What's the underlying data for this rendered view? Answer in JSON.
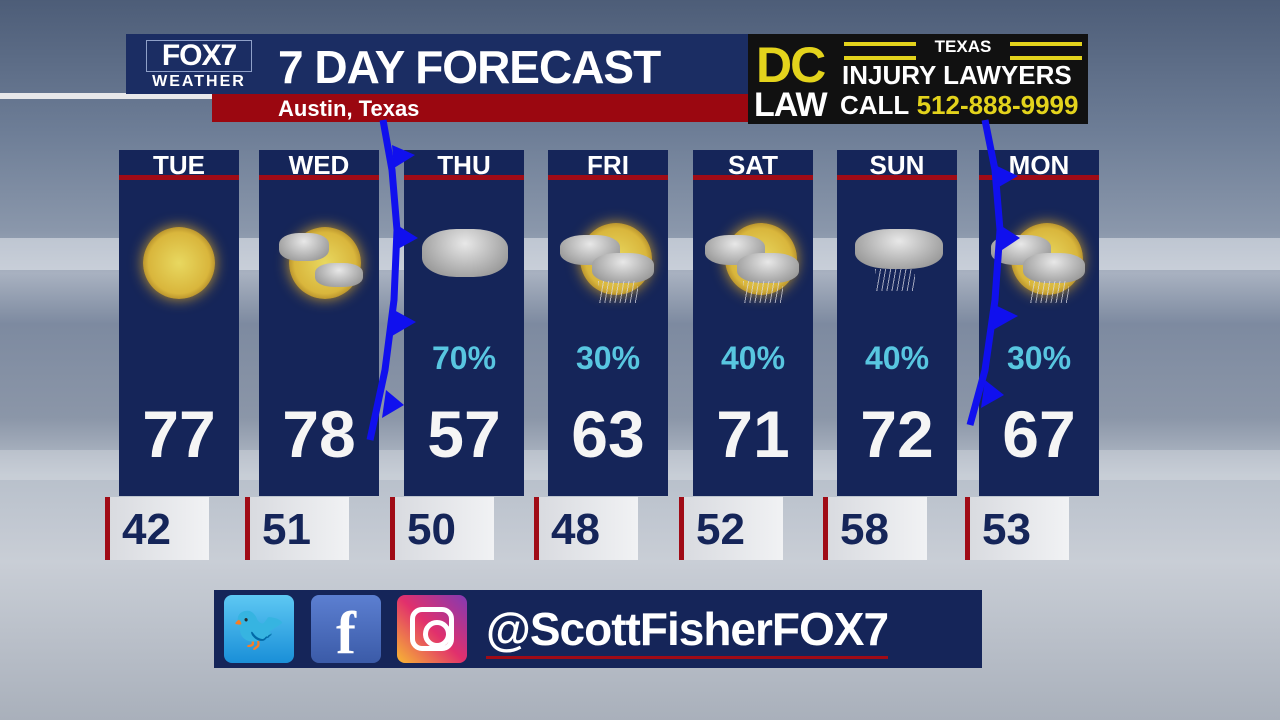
{
  "header": {
    "logo_top": "FOX7",
    "logo_bottom": "WEATHER",
    "title": "7 DAY FORECAST",
    "location": "Austin, Texas"
  },
  "ad": {
    "dc": "DC",
    "law": "LAW",
    "texas": "TEXAS",
    "injury": "INJURY LAWYERS",
    "call": "CALL",
    "phone": "512-888-9999"
  },
  "days": [
    {
      "day": "TUE",
      "icon": "sunny-icon",
      "pop": "",
      "high": "77",
      "low": "42"
    },
    {
      "day": "WED",
      "icon": "partly-cloudy-icon",
      "pop": "",
      "high": "78",
      "low": "51"
    },
    {
      "day": "THU",
      "icon": "cloudy-icon",
      "pop": "70%",
      "high": "57",
      "low": "50"
    },
    {
      "day": "FRI",
      "icon": "sun-showers-icon",
      "pop": "30%",
      "high": "63",
      "low": "48"
    },
    {
      "day": "SAT",
      "icon": "sun-showers-icon",
      "pop": "40%",
      "high": "71",
      "low": "52"
    },
    {
      "day": "SUN",
      "icon": "rain-icon",
      "pop": "40%",
      "high": "72",
      "low": "58"
    },
    {
      "day": "MON",
      "icon": "sun-showers-icon",
      "pop": "30%",
      "high": "67",
      "low": "53"
    }
  ],
  "social": {
    "handle": "@ScottFisherFOX7",
    "icons": [
      "twitter-icon",
      "facebook-icon",
      "instagram-icon"
    ]
  },
  "colors": {
    "panel": "#152559",
    "accent_red": "#a00b16",
    "pop": "#58c6e0",
    "front": "#1010ee",
    "ad_yellow": "#e3d31c"
  }
}
